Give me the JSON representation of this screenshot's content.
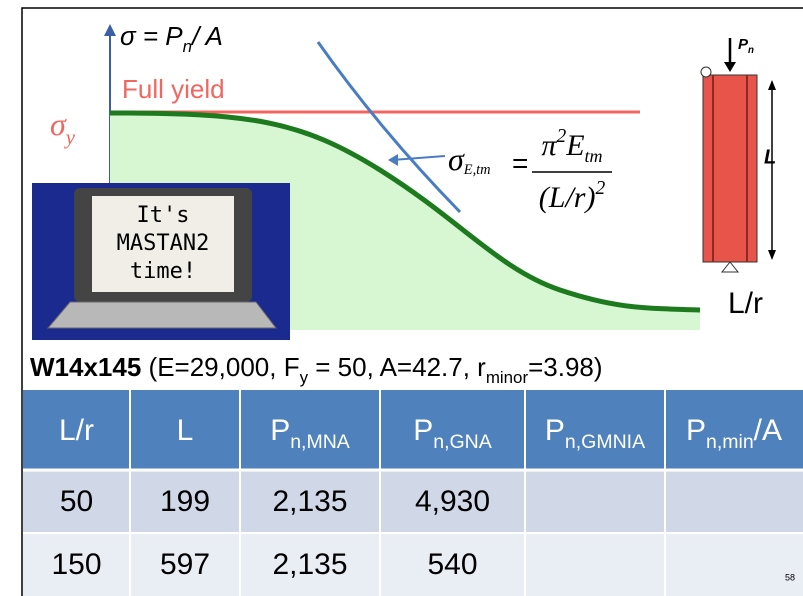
{
  "graph": {
    "y_label": {
      "base": "σ = P",
      "sub": "n",
      "rest": "/ A"
    },
    "full_yield": "Full yield",
    "sigma_y": {
      "base": "σ",
      "sub": "y"
    },
    "x_label": "L/r",
    "formula": {
      "lhs": "σ",
      "lhs_sub": "E,tm",
      "equals": "=",
      "num_base": "π",
      "num_sup": "2",
      "num_E": "E",
      "num_sub": "tm",
      "den": "(L/r)",
      "den_sup": "2"
    }
  },
  "laptop": {
    "lines": [
      "It's",
      "MASTAN2",
      "time!"
    ]
  },
  "column": {
    "load": "P",
    "load_sub": "n",
    "length": "L"
  },
  "section": {
    "name": "W14x145",
    "parts": [
      {
        "text": " (E=29,000, F"
      },
      {
        "text": "y",
        "sub": true
      },
      {
        "text": " = 50, A=42.7, r"
      },
      {
        "text": "minor",
        "sub": true
      },
      {
        "text": "=3.98)"
      }
    ]
  },
  "table": {
    "header": [
      {
        "text": "L/r"
      },
      {
        "text": "L"
      },
      {
        "text": "P",
        "sub": "n,MNA"
      },
      {
        "text": "P",
        "sub": "n,GNA"
      },
      {
        "text": "P",
        "sub": "n,GMNIA"
      },
      {
        "text": "P",
        "sub": "n,min",
        "after": "/A"
      }
    ],
    "rows": [
      [
        "50",
        "199",
        "2,135",
        "4,930"
      ],
      [
        "150",
        "597",
        "2,135",
        "540"
      ]
    ]
  },
  "page_number": "58"
}
